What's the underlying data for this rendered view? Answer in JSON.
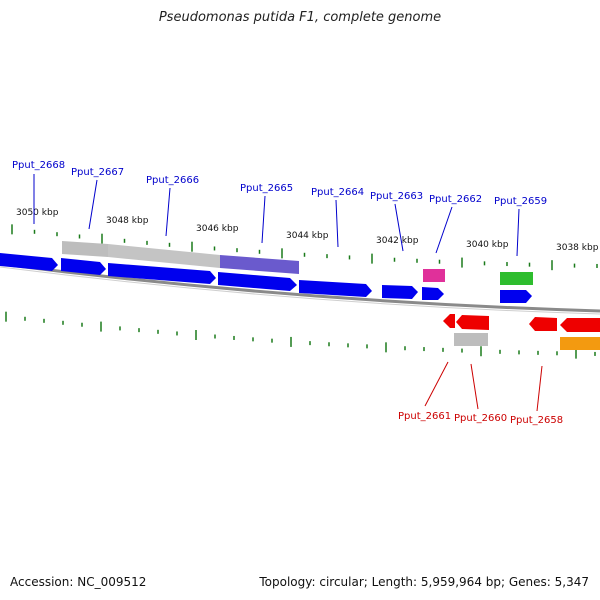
{
  "title": "Pseudomonas putida F1, complete genome",
  "footer": {
    "accession": "Accession: NC_009512",
    "summary": "Topology: circular; Length: 5,959,964 bp; Genes: 5,347"
  },
  "colors": {
    "forward_gene": "#0000ee",
    "reverse_gene": "#ee0000",
    "forward_label": "#0000cc",
    "reverse_label": "#cc0000",
    "tick": "#1a7a1a",
    "backbone": "#888888",
    "grey_feature": "#bbbbbb",
    "purple_feature": "#6a5acd",
    "pink_feature": "#e0309a",
    "green_feature": "#2ebd2e",
    "orange_feature": "#f39a10"
  },
  "scale_labels": [
    "3050 kbp",
    "3048 kbp",
    "3046 kbp",
    "3044 kbp",
    "3042 kbp",
    "3040 kbp",
    "3038 kbp"
  ],
  "forward_genes": [
    "Pput_2668",
    "Pput_2667",
    "Pput_2666",
    "Pput_2665",
    "Pput_2664",
    "Pput_2663",
    "Pput_2662",
    "Pput_2659"
  ],
  "reverse_genes": [
    "Pput_2661",
    "Pput_2660",
    "Pput_2658"
  ]
}
